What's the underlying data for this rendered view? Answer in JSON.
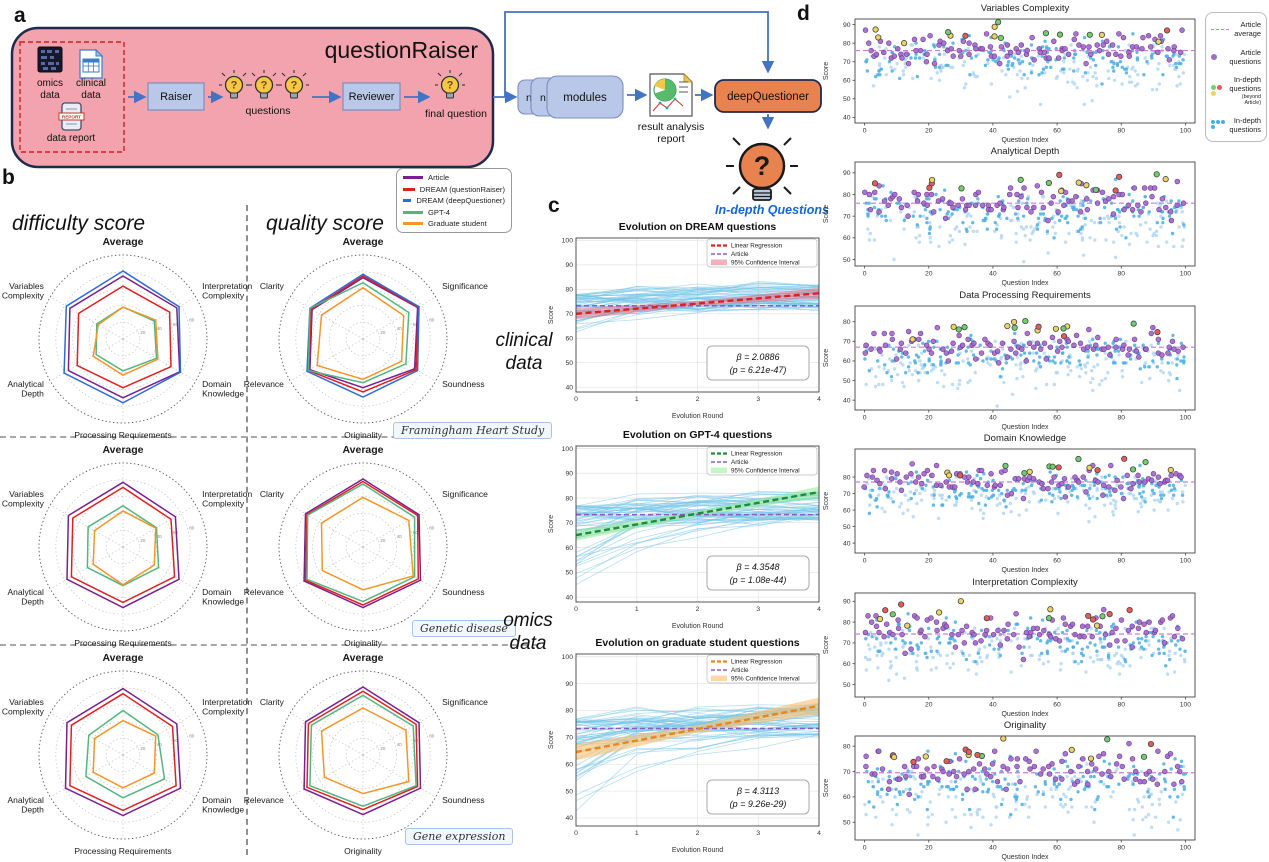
{
  "panel_labels": {
    "a": "a",
    "b": "b",
    "c": "c",
    "d": "d"
  },
  "flowchart": {
    "title": "questionRaiser",
    "omics_l1": "omics",
    "omics_l2": "data",
    "clinical_l1": "clinical",
    "clinical_l2": "data",
    "report_stamp": "REPORT",
    "report_label": "data report",
    "raiser": "Raiser",
    "questions": "questions",
    "reviewer": "Reviewer",
    "final_question": "final question",
    "bulb_glyph": "?",
    "module_n1": "n",
    "module_n2": "n",
    "modules": "modules",
    "result_l1": "result analysis",
    "result_l2": "report",
    "deep_questioner": "deepQuestioner",
    "indepth": "In-depth Questions"
  },
  "panel_b": {
    "difficulty_title": "difficulty score",
    "quality_title": "quality score",
    "legend": [
      {
        "label": "Article",
        "color": "#7a1f8e"
      },
      {
        "label": "DREAM (questionRaiser)",
        "color": "#e01f1f"
      },
      {
        "label": "DREAM (deepQuestioner)",
        "color": "#2f6bd8"
      },
      {
        "label": "GPT-4",
        "color": "#53b57f"
      },
      {
        "label": "Graduate student",
        "color": "#f59527"
      }
    ],
    "clinical_tag": "clinical\ndata",
    "omics_tag": "omics\ndata",
    "dataset_tags": [
      "Framingham Heart Study",
      "Genetic disease",
      "Gene expression"
    ]
  },
  "panel_d": {
    "legend": [
      {
        "type": "dash",
        "label": "Article\naverage"
      },
      {
        "type": "dot",
        "label": "Article\nquestions"
      },
      {
        "type": "dots3",
        "label": "In-depth\nquestions",
        "sub": "(beyond Article)"
      },
      {
        "type": "dots4",
        "label": "In-depth\nquestions"
      }
    ]
  },
  "chart_data": {
    "radars": [
      {
        "type": "radar",
        "dataset": "Framingham Heart Study (clinical data)",
        "metric": "difficulty score",
        "max": 100,
        "ticks": [
          20,
          40,
          60,
          80
        ],
        "axes": [
          [
            "Average"
          ],
          [
            "Interpretation",
            "Complexity"
          ],
          [
            "Domain",
            "Knowledge"
          ],
          [
            "Processing Requirements"
          ],
          [
            "Analytical",
            "Depth"
          ],
          [
            "Variables",
            "Complexity"
          ]
        ],
        "series": [
          {
            "name": "Article",
            "color": "#7a1f8e",
            "values": [
              75,
              74,
              78,
              70,
              75,
              73
            ]
          },
          {
            "name": "DREAM (questionRaiser)",
            "color": "#e01f1f",
            "values": [
              63,
              64,
              66,
              58,
              63,
              61
            ]
          },
          {
            "name": "DREAM (deepQuestioner)",
            "color": "#2f6bd8",
            "values": [
              81,
              77,
              79,
              76,
              81,
              78
            ]
          },
          {
            "name": "GPT-4",
            "color": "#53b57f",
            "values": [
              38,
              43,
              46,
              38,
              37,
              36
            ]
          },
          {
            "name": "Graduate student",
            "color": "#f59527",
            "values": [
              38,
              45,
              48,
              43,
              41,
              34
            ]
          }
        ]
      },
      {
        "type": "radar",
        "dataset": "Framingham Heart Study (clinical data)",
        "metric": "quality score",
        "max": 100,
        "ticks": [
          20,
          40,
          60,
          80
        ],
        "axes": [
          [
            "Average"
          ],
          [
            "Significance"
          ],
          [
            "Soundness"
          ],
          [
            "Originality"
          ],
          [
            "Relevance"
          ],
          [
            "Clarity"
          ]
        ],
        "series": [
          {
            "name": "Article",
            "color": "#7a1f8e",
            "values": [
              73,
              75,
              71,
              58,
              73,
              70
            ]
          },
          {
            "name": "DREAM (questionRaiser)",
            "color": "#e01f1f",
            "values": [
              75,
              76,
              73,
              63,
              75,
              71
            ]
          },
          {
            "name": "DREAM (deepQuestioner)",
            "color": "#2f6bd8",
            "values": [
              77,
              77,
              75,
              69,
              77,
              73
            ]
          },
          {
            "name": "GPT-4",
            "color": "#53b57f",
            "values": [
              67,
              63,
              59,
              52,
              75,
              73
            ]
          },
          {
            "name": "Graduate student",
            "color": "#f59527",
            "values": [
              61,
              56,
              53,
              48,
              63,
              57
            ]
          }
        ]
      },
      {
        "type": "radar",
        "dataset": "Genetic disease (omics data)",
        "metric": "difficulty score",
        "max": 100,
        "ticks": [
          20,
          40,
          60,
          80
        ],
        "axes": [
          [
            "Average"
          ],
          [
            "Interpretation",
            "Complexity"
          ],
          [
            "Domain",
            "Knowledge"
          ],
          [
            "Processing Requirements"
          ],
          [
            "Analytical",
            "Depth"
          ],
          [
            "Variables",
            "Complexity"
          ]
        ],
        "series": [
          {
            "name": "Article",
            "color": "#7a1f8e",
            "values": [
              77,
              72,
              77,
              72,
              77,
              75
            ]
          },
          {
            "name": "DREAM (questionRaiser)",
            "color": "#e01f1f",
            "values": [
              71,
              66,
              71,
              66,
              71,
              69
            ]
          },
          {
            "name": "GPT-4",
            "color": "#53b57f",
            "values": [
              49,
              46,
              49,
              46,
              49,
              48
            ]
          },
          {
            "name": "Graduate student",
            "color": "#f59527",
            "values": [
              43,
              45,
              43,
              45,
              41,
              39
            ]
          }
        ]
      },
      {
        "type": "radar",
        "dataset": "Genetic disease (omics data)",
        "metric": "quality score",
        "max": 100,
        "ticks": [
          20,
          40,
          60,
          80
        ],
        "axes": [
          [
            "Average"
          ],
          [
            "Significance"
          ],
          [
            "Soundness"
          ],
          [
            "Originality"
          ],
          [
            "Relevance"
          ],
          [
            "Clarity"
          ]
        ],
        "series": [
          {
            "name": "Article",
            "color": "#7a1f8e",
            "values": [
              81,
              77,
              79,
              72,
              81,
              79
            ]
          },
          {
            "name": "DREAM (questionRaiser)",
            "color": "#e01f1f",
            "values": [
              78,
              75,
              76,
              69,
              79,
              77
            ]
          },
          {
            "name": "GPT-4",
            "color": "#53b57f",
            "values": [
              75,
              71,
              71,
              65,
              77,
              76
            ]
          },
          {
            "name": "Graduate student",
            "color": "#f59527",
            "values": [
              59,
              63,
              69,
              51,
              56,
              57
            ]
          }
        ]
      },
      {
        "type": "radar",
        "dataset": "Gene expression (omics data)",
        "metric": "difficulty score",
        "max": 100,
        "ticks": [
          20,
          40,
          60,
          80
        ],
        "axes": [
          [
            "Average"
          ],
          [
            "Interpretation",
            "Complexity"
          ],
          [
            "Domain",
            "Knowledge"
          ],
          [
            "Processing Requirements"
          ],
          [
            "Analytical",
            "Depth"
          ],
          [
            "Variables",
            "Complexity"
          ]
        ],
        "series": [
          {
            "name": "Article",
            "color": "#7a1f8e",
            "values": [
              79,
              74,
              79,
              72,
              79,
              77
            ]
          },
          {
            "name": "DREAM (questionRaiser)",
            "color": "#e01f1f",
            "values": [
              73,
              68,
              73,
              66,
              73,
              71
            ]
          },
          {
            "name": "GPT-4",
            "color": "#53b57f",
            "values": [
              53,
              48,
              57,
              51,
              51,
              47
            ]
          },
          {
            "name": "Graduate student",
            "color": "#f59527",
            "values": [
              41,
              45,
              43,
              39,
              41,
              39
            ]
          }
        ]
      },
      {
        "type": "radar",
        "dataset": "Gene expression (omics data)",
        "metric": "quality score",
        "max": 100,
        "ticks": [
          20,
          40,
          60,
          80
        ],
        "axes": [
          [
            "Average"
          ],
          [
            "Significance"
          ],
          [
            "Soundness"
          ],
          [
            "Originality"
          ],
          [
            "Relevance"
          ],
          [
            "Clarity"
          ]
        ],
        "series": [
          {
            "name": "Article",
            "color": "#7a1f8e",
            "values": [
              81,
              77,
              79,
              71,
              81,
              79
            ]
          },
          {
            "name": "DREAM (questionRaiser)",
            "color": "#e01f1f",
            "values": [
              76,
              73,
              75,
              65,
              77,
              75
            ]
          },
          {
            "name": "GPT-4",
            "color": "#53b57f",
            "values": [
              71,
              69,
              73,
              61,
              73,
              71
            ]
          },
          {
            "name": "Graduate student",
            "color": "#f59527",
            "values": [
              56,
              59,
              63,
              46,
              53,
              57
            ]
          }
        ]
      }
    ],
    "evolution": [
      {
        "type": "line",
        "title": "Evolution on DREAM questions",
        "xlabel": "Evolution Round",
        "ylabel": "Score",
        "ylim": [
          38,
          101
        ],
        "yticks": [
          40,
          50,
          60,
          70,
          80,
          90,
          100
        ],
        "xticks": [
          0,
          1,
          2,
          3,
          4
        ],
        "regression": {
          "y_start": 70.0,
          "y_end": 78.4,
          "color": "#dd2020",
          "ci_color": "rgba(228,82,110,0.45)",
          "ci_width": 1.6
        },
        "article_avg": 73.3,
        "article_color": "#8b5cc8",
        "beta_label": "β = 2.0886",
        "p_label": "(p = 6.21e-47)",
        "legend": [
          "Linear Regression",
          "Article",
          "95% Confidence Interval"
        ],
        "lines": {
          "n": 55,
          "start_range": [
            59,
            78
          ],
          "end_range": [
            71,
            82
          ],
          "seed": 11
        }
      },
      {
        "type": "line",
        "title": "Evolution on GPT-4 questions",
        "xlabel": "Evolution Round",
        "ylabel": "Score",
        "ylim": [
          38,
          101
        ],
        "yticks": [
          40,
          50,
          60,
          70,
          80,
          90,
          100
        ],
        "xticks": [
          0,
          1,
          2,
          3,
          4
        ],
        "regression": {
          "y_start": 65.0,
          "y_end": 82.4,
          "color": "#1e8b3c",
          "ci_color": "rgba(150,235,150,0.55)",
          "ci_width": 1.6
        },
        "article_avg": 73.3,
        "article_color": "#8b5cc8",
        "beta_label": "β = 4.3548",
        "p_label": "(p = 1.08e-44)",
        "legend": [
          "Linear Regression",
          "Article",
          "95% Confidence Interval"
        ],
        "lines": {
          "n": 60,
          "start_range": [
            41,
            77
          ],
          "end_range": [
            71,
            83
          ],
          "seed": 22
        }
      },
      {
        "type": "line",
        "title": "Evolution on graduate student questions",
        "xlabel": "Evolution Round",
        "ylabel": "Score",
        "ylim": [
          37,
          101
        ],
        "yticks": [
          40,
          50,
          60,
          70,
          80,
          90,
          100
        ],
        "xticks": [
          0,
          1,
          2,
          3,
          4
        ],
        "regression": {
          "y_start": 64.5,
          "y_end": 81.7,
          "color": "#e8871e",
          "ci_color": "rgba(246,190,110,0.6)",
          "ci_width": 2.2
        },
        "article_avg": 73.3,
        "article_color": "#8b5cc8",
        "beta_label": "β = 4.3113",
        "p_label": "(p = 9.26e-29)",
        "legend": [
          "Linear Regression",
          "Article",
          "95% Confidence Interval"
        ],
        "lines": {
          "n": 60,
          "start_range": [
            39,
            77
          ],
          "end_range": [
            70,
            83
          ],
          "seed": 33
        }
      }
    ],
    "scatters": [
      {
        "type": "scatter",
        "title": "Variables Complexity",
        "xlabel": "Question Index",
        "ylabel": "Score",
        "xticks": [
          0,
          20,
          40,
          60,
          80,
          100
        ],
        "ylim": [
          37,
          93
        ],
        "yticks": [
          40,
          50,
          60,
          70,
          80,
          90
        ],
        "article_avg": 76,
        "n_article": 100,
        "n_indepth": 320,
        "n_beyond": 16,
        "seed": 1
      },
      {
        "type": "scatter",
        "title": "Analytical Depth",
        "xlabel": "Question Index",
        "ylabel": "Score",
        "xticks": [
          0,
          20,
          40,
          60,
          80,
          100
        ],
        "ylim": [
          47,
          95
        ],
        "yticks": [
          50,
          60,
          70,
          80,
          90
        ],
        "article_avg": 76,
        "n_article": 100,
        "n_indepth": 320,
        "n_beyond": 16,
        "seed": 2
      },
      {
        "type": "scatter",
        "title": "Data Processing Requirements",
        "xlabel": "Question Index",
        "ylabel": "Score",
        "xticks": [
          0,
          20,
          40,
          60,
          80,
          100
        ],
        "ylim": [
          35,
          88
        ],
        "yticks": [
          40,
          50,
          60,
          70,
          80
        ],
        "article_avg": 67,
        "n_article": 100,
        "n_indepth": 320,
        "n_beyond": 16,
        "seed": 3
      },
      {
        "type": "scatter",
        "title": "Domain Knowledge",
        "xlabel": "Question Index",
        "ylabel": "Score",
        "xticks": [
          0,
          20,
          40,
          60,
          80,
          100
        ],
        "ylim": [
          34,
          97
        ],
        "yticks": [
          40,
          50,
          60,
          70,
          80
        ],
        "article_avg": 77,
        "n_article": 100,
        "n_indepth": 320,
        "n_beyond": 16,
        "seed": 4
      },
      {
        "type": "scatter",
        "title": "Interpretation Complexity",
        "xlabel": "Question Index",
        "ylabel": "Score",
        "xticks": [
          0,
          20,
          40,
          60,
          80,
          100
        ],
        "ylim": [
          44,
          94
        ],
        "yticks": [
          50,
          60,
          70,
          80,
          90
        ],
        "article_avg": 74.3,
        "n_article": 100,
        "n_indepth": 320,
        "n_beyond": 16,
        "seed": 5
      },
      {
        "type": "scatter",
        "title": "Originality",
        "xlabel": "Question Index",
        "ylabel": "Score",
        "xticks": [
          0,
          20,
          40,
          60,
          80,
          100
        ],
        "ylim": [
          43,
          84
        ],
        "yticks": [
          50,
          60,
          70,
          80
        ],
        "article_avg": 69.5,
        "n_article": 100,
        "n_indepth": 320,
        "n_beyond": 16,
        "seed": 6
      }
    ],
    "scatter_style": {
      "article_fill": "#a06cc8",
      "article_edge": "#713099",
      "indepth_blue": "#49aee3",
      "indepth_pale": "#aed4f2",
      "beyond_colors": [
        "#6fcf6f",
        "#e85a5a",
        "#eed35f"
      ],
      "avg_line": "#c77fd6"
    }
  }
}
